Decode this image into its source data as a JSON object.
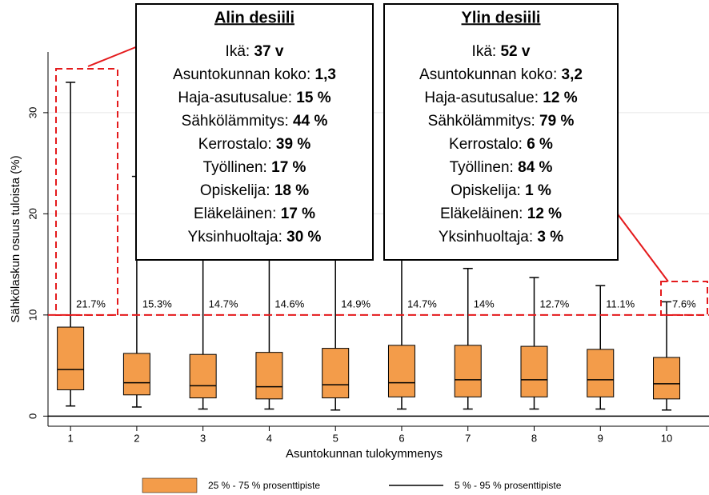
{
  "chart_data": {
    "type": "box",
    "ylabel": "Sähkölaskun osuus tuloista (%)",
    "xlabel": "Asuntokunnan tulokymmenys",
    "x": [
      1,
      2,
      3,
      4,
      5,
      6,
      7,
      8,
      9,
      10
    ],
    "xlim": [
      0.66,
      10.64
    ],
    "xticks": [
      1,
      2,
      3,
      4,
      5,
      6,
      7,
      8,
      9,
      10
    ],
    "ylim": [
      -1,
      36
    ],
    "yticks": [
      0,
      10,
      20,
      30
    ],
    "grid": true,
    "ref_line": 10,
    "boxes": {
      "low": [
        1.0,
        0.9,
        0.7,
        0.7,
        0.6,
        0.7,
        0.7,
        0.7,
        0.7,
        0.6
      ],
      "q1": [
        2.6,
        2.1,
        1.8,
        1.7,
        1.8,
        1.9,
        1.9,
        1.9,
        1.9,
        1.7
      ],
      "median": [
        4.6,
        3.3,
        3.0,
        2.9,
        3.1,
        3.3,
        3.6,
        3.6,
        3.6,
        3.2
      ],
      "q3": [
        8.8,
        6.2,
        6.1,
        6.3,
        6.7,
        7.0,
        7.0,
        6.9,
        6.6,
        5.8
      ],
      "high": [
        33.0,
        23.7,
        22,
        22,
        22,
        22,
        14.6,
        13.7,
        12.9,
        11.3
      ]
    },
    "box_color": "#f39c4a",
    "top_share": {
      "values": [
        21.7,
        15.3,
        14.7,
        14.6,
        14.9,
        14.7,
        14,
        12.7,
        11.1,
        7.6
      ],
      "value_labels": [
        "21.7%",
        "15.3%",
        "14.7%",
        "14.6%",
        "14.9%",
        "14.7%",
        "14%",
        "12.7%",
        "11.1%",
        "7.6%"
      ]
    },
    "legend": [
      {
        "name": "25 % - 75 % prosenttipiste",
        "color": "#f39c4a"
      },
      {
        "name": "5 % - 95 % prosenttipiste",
        "color": "#000000"
      }
    ]
  },
  "annotations": [
    {
      "title": "Alin desiili",
      "rows": [
        {
          "label": "Ikä:",
          "value": "37 v"
        },
        {
          "label": "Asuntokunnan koko:",
          "value": "1,3"
        },
        {
          "label": "Haja-asutusalue:",
          "value": "15 %"
        },
        {
          "label": "Sähkölämmitys:",
          "value": "44 %"
        },
        {
          "label": "Kerrostalo:",
          "value": "39 %"
        },
        {
          "label": "Työllinen:",
          "value": "17 %"
        },
        {
          "label": "Opiskelija:",
          "value": "18 %"
        },
        {
          "label": "Eläkeläinen:",
          "value": "17 %"
        },
        {
          "label": "Yksinhuoltaja:",
          "value": "30 %"
        }
      ]
    },
    {
      "title": "Ylin desiili",
      "rows": [
        {
          "label": "Ikä:",
          "value": "52 v"
        },
        {
          "label": "Asuntokunnan koko:",
          "value": "3,2"
        },
        {
          "label": "Haja-asutusalue:",
          "value": "12 %"
        },
        {
          "label": "Sähkölämmitys:",
          "value": "79 %"
        },
        {
          "label": "Kerrostalo:",
          "value": "6 %"
        },
        {
          "label": "Työllinen:",
          "value": "84 %"
        },
        {
          "label": "Opiskelija:",
          "value": "1 %"
        },
        {
          "label": "Eläkeläinen:",
          "value": "12 %"
        },
        {
          "label": "Yksinhuoltaja:",
          "value": "3 %"
        }
      ]
    }
  ]
}
